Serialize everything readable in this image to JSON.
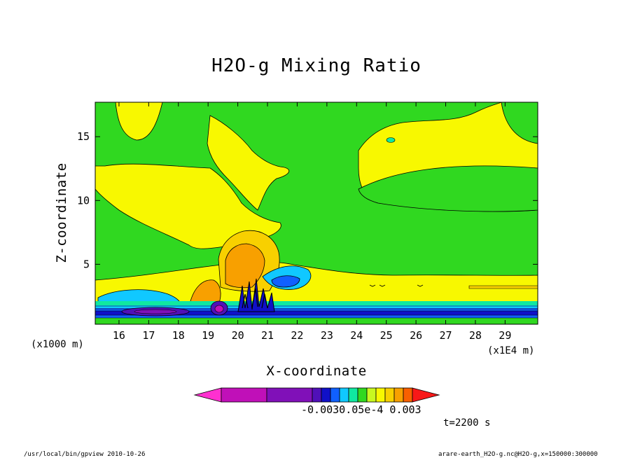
{
  "chart_data": {
    "type": "contour",
    "title": "H2O-g Mixing Ratio",
    "xlabel": "X-coordinate",
    "ylabel": "Z-coordinate",
    "x_units_label": "(x1000 m)",
    "x_scale_label": "(x1E4 m)",
    "xlim": [
      15.2,
      30.1
    ],
    "ylim": [
      0.3,
      17.7
    ],
    "x_ticks": [
      16,
      17,
      18,
      19,
      20,
      21,
      22,
      23,
      24,
      25,
      26,
      27,
      28,
      29
    ],
    "y_ticks": [
      5,
      10,
      15
    ],
    "colorbar": {
      "colors": [
        "#ff30d0",
        "#c010b8",
        "#8010b8",
        "#5010b8",
        "#1010c8",
        "#1060ff",
        "#10c8ff",
        "#10e8a0",
        "#30d820",
        "#c8f820",
        "#f8f800",
        "#f8d000",
        "#f8a000",
        "#f86000",
        "#f81818"
      ],
      "labels": [
        "-0.003",
        "-0.003",
        "0.05e-4",
        "0.003"
      ],
      "labels_display": "-0.0030.05e-4 0.003"
    },
    "annotation": "t=2200 s",
    "footer_left": "/usr/local/bin/gpview  2010-10-26",
    "footer_right": "arare-earth_H2O-g.nc@H2O-g,x=150000:300000"
  }
}
